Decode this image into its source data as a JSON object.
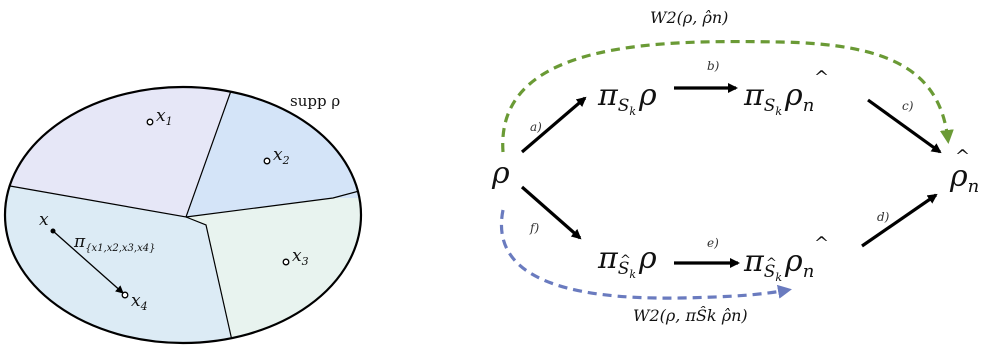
{
  "left_panel": {
    "support_label": "supp ρ",
    "points": [
      {
        "name": "x",
        "sub": "1"
      },
      {
        "name": "x",
        "sub": "2"
      },
      {
        "name": "x",
        "sub": "3"
      },
      {
        "name": "x",
        "sub": "4"
      }
    ],
    "x_label": "x",
    "projection": {
      "symbol": "π",
      "subscript": "{x1,x2,x3,x4}"
    },
    "colors": {
      "cell1": "#e6e7f7",
      "cell2": "#d4e4f8",
      "cell3": "#e8f3ef",
      "cell4": "#dcebf5",
      "outline": "#000000"
    }
  },
  "right_panel": {
    "nodes": {
      "rho": "ρ",
      "rho_hat": {
        "main": "ρ",
        "sub": "n"
      },
      "top_left": {
        "pi": "π",
        "sub": "S",
        "subsub": "k",
        "arg": "ρ"
      },
      "top_right": {
        "pi": "π",
        "sub": "S",
        "subsub": "k",
        "arg": "ρ",
        "argsub": "n"
      },
      "bottom_left": {
        "pi": "π",
        "sub": "S",
        "subsub": "k",
        "arg": "ρ"
      },
      "bottom_right": {
        "pi": "π",
        "sub": "S",
        "subsub": "k",
        "arg": "ρ",
        "argsub": "n"
      }
    },
    "edge_labels": [
      "a)",
      "b)",
      "c)",
      "d)",
      "e)",
      "f)"
    ],
    "top_curve_label": "W2(ρ, ρ̂n)",
    "bottom_curve_label": "W2(ρ, πŜk ρ̂n)",
    "top_curve_color": "#6a9a35",
    "bottom_curve_color": "#6a7bbf"
  }
}
